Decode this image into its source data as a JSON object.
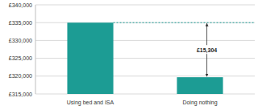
{
  "chart_data": {
    "type": "bar",
    "categories": [
      "Using bed and ISA",
      "Doing nothing"
    ],
    "values": [
      335000,
      319696
    ],
    "color": "#1c9c94",
    "ylim": [
      315000,
      340000
    ],
    "yticks": [
      {
        "value": 315000,
        "label": "£315,000"
      },
      {
        "value": 320000,
        "label": "£320,000"
      },
      {
        "value": 325000,
        "label": "£325,000"
      },
      {
        "value": 330000,
        "label": "£330,000"
      },
      {
        "value": 335000,
        "label": "£335,000"
      },
      {
        "value": 340000,
        "label": "£340,000"
      }
    ],
    "grid": true,
    "annotation": "£15,304"
  }
}
